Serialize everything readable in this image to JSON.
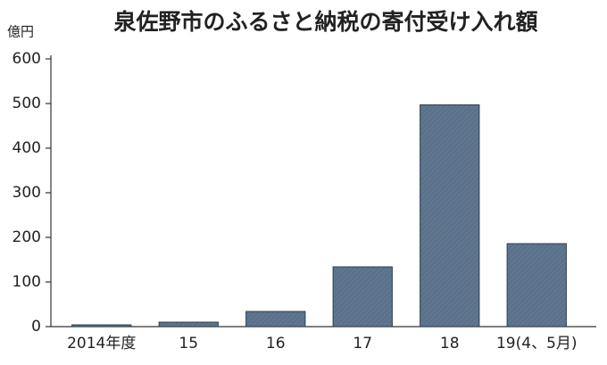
{
  "chart_data": {
    "type": "bar",
    "title": "泉佐野市のふるさと納税の寄付受け入れ額",
    "y_label": "億円",
    "categories": [
      "2014年度",
      "15",
      "16",
      "17",
      "18",
      "19(4、5月)"
    ],
    "values": [
      4,
      10,
      34,
      134,
      497,
      186
    ],
    "color": "#5f7690",
    "ylim": [
      0,
      600
    ],
    "yticks": [
      0,
      100,
      200,
      300,
      400,
      500,
      600
    ],
    "grid": false
  }
}
